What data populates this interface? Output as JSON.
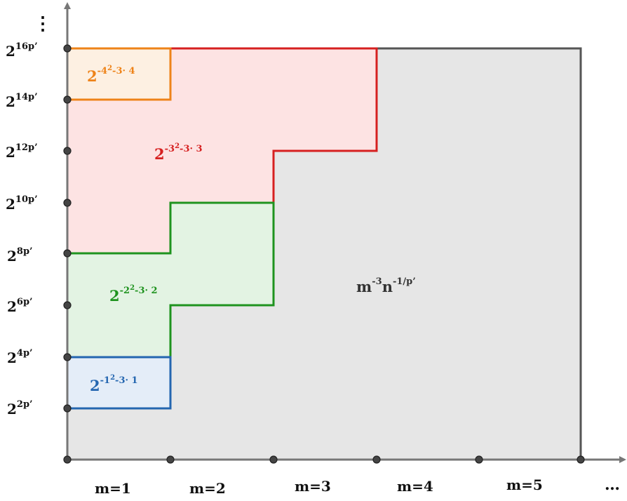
{
  "colors": {
    "gray_region": "#e6e6e6",
    "gray_border": "#555555",
    "red": "#d62020",
    "red_fill": "#fde3e3",
    "orange": "#ee8319",
    "orange_fill": "#fdf0e2",
    "green": "#1f931f",
    "green_fill": "#e3f3e3",
    "blue": "#2466b0",
    "blue_fill": "#e4edf8"
  },
  "y_ticks": [
    {
      "base": "2",
      "exp": "2p’"
    },
    {
      "base": "2",
      "exp": "4p’"
    },
    {
      "base": "2",
      "exp": "6p’"
    },
    {
      "base": "2",
      "exp": "8p’"
    },
    {
      "base": "2",
      "exp": "10p’"
    },
    {
      "base": "2",
      "exp": "12p’"
    },
    {
      "base": "2",
      "exp": "14p’"
    },
    {
      "base": "2",
      "exp": "16p’"
    }
  ],
  "y_more": "⋮",
  "x_ticks": [
    "m=1",
    "m=2",
    "m=3",
    "m=4",
    "m=5"
  ],
  "x_more": "…",
  "labels": {
    "gray": {
      "main_m": "m",
      "exp_m": "-3",
      "main_n": "n",
      "exp_n": "-1/p’"
    },
    "blue": {
      "base": "2",
      "exp_a": "-1",
      "exp_sq": "2",
      "exp_b": "-3· 1"
    },
    "green": {
      "base": "2",
      "exp_a": "-2",
      "exp_sq": "2",
      "exp_b": "-3· 2"
    },
    "red": {
      "base": "2",
      "exp_a": "-3",
      "exp_sq": "2",
      "exp_b": "-3· 3"
    },
    "orange": {
      "base": "2",
      "exp_a": "-4",
      "exp_sq": "2",
      "exp_b": "-3· 4"
    }
  }
}
